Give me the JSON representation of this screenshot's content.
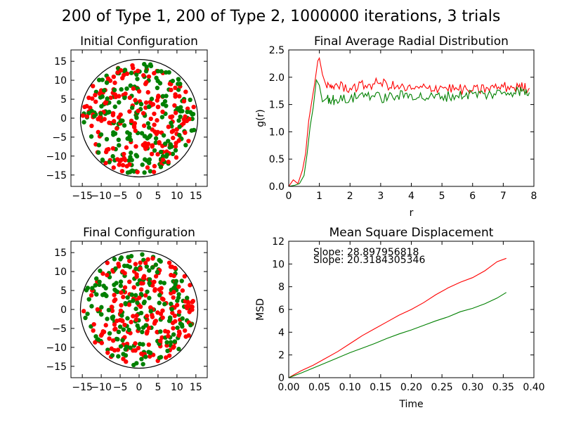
{
  "figure": {
    "suptitle": "200 of Type 1, 200 of Type 2, 1000000 iterations, 3 trials"
  },
  "colors": {
    "type1": "#ff0000",
    "type2": "#008000",
    "axes": "#000000",
    "background": "#ffffff"
  },
  "chart_data": [
    {
      "type": "scatter",
      "title": "Initial Configuration",
      "xlabel": "",
      "ylabel": "",
      "xlim": [
        -18,
        18
      ],
      "ylim": [
        -18,
        18
      ],
      "xticks": [
        -15,
        -10,
        -5,
        0,
        5,
        10,
        15
      ],
      "xtick_labels": [
        "−15",
        "−10",
        "−5",
        "0",
        "5",
        "10",
        "15"
      ],
      "yticks": [
        -15,
        -10,
        -5,
        0,
        5,
        10,
        15
      ],
      "ytick_labels": [
        "−15",
        "−10",
        "−5",
        "0",
        "5",
        "10",
        "15"
      ],
      "boundary_circle_radius": 15.5,
      "grid": false,
      "series": [
        {
          "color": "#ff0000",
          "count": 200
        },
        {
          "color": "#008000",
          "count": 200
        }
      ]
    },
    {
      "type": "line",
      "title": "Final Average Radial Distribution",
      "xlabel": "r",
      "ylabel": "g(r)",
      "xlim": [
        0,
        8
      ],
      "ylim": [
        0,
        2.5
      ],
      "xticks": [
        0,
        1,
        2,
        3,
        4,
        5,
        6,
        7,
        8
      ],
      "xtick_labels": [
        "0",
        "1",
        "2",
        "3",
        "4",
        "5",
        "6",
        "7",
        "8"
      ],
      "yticks": [
        0,
        0.5,
        1,
        1.5,
        2,
        2.5
      ],
      "ytick_labels": [
        "0.0",
        "0.5",
        "1.0",
        "1.5",
        "2.0",
        "2.5"
      ],
      "grid": false,
      "series": [
        {
          "color": "#ff0000",
          "x": [
            0,
            0.15,
            0.3,
            0.45,
            0.55,
            0.65,
            0.75,
            0.85,
            0.95,
            1.0,
            1.1,
            1.25,
            1.5,
            2,
            2.5,
            3,
            3.5,
            4,
            4.5,
            5,
            5.5,
            6,
            6.5,
            7,
            7.5,
            7.85
          ],
          "y": [
            0,
            0.12,
            0.05,
            0.3,
            0.6,
            1.2,
            1.55,
            1.9,
            2.3,
            2.35,
            2.05,
            1.8,
            1.85,
            1.8,
            1.85,
            1.9,
            1.82,
            1.78,
            1.8,
            1.82,
            1.78,
            1.75,
            1.8,
            1.82,
            1.82,
            1.8
          ]
        },
        {
          "color": "#008000",
          "x": [
            0,
            0.2,
            0.35,
            0.5,
            0.6,
            0.7,
            0.8,
            0.9,
            1.0,
            1.1,
            1.25,
            1.5,
            2,
            2.5,
            3,
            3.5,
            4,
            4.5,
            5,
            5.5,
            6,
            6.5,
            7,
            7.5,
            7.85
          ],
          "y": [
            0,
            0.02,
            0.05,
            0.2,
            0.6,
            1.1,
            1.45,
            1.95,
            1.85,
            1.55,
            1.62,
            1.58,
            1.6,
            1.7,
            1.62,
            1.65,
            1.68,
            1.62,
            1.65,
            1.66,
            1.7,
            1.68,
            1.72,
            1.75,
            1.72
          ]
        }
      ]
    },
    {
      "type": "scatter",
      "title": "Final Configuration",
      "xlabel": "",
      "ylabel": "",
      "xlim": [
        -18,
        18
      ],
      "ylim": [
        -18,
        18
      ],
      "xticks": [
        -15,
        -10,
        -5,
        0,
        5,
        10,
        15
      ],
      "xtick_labels": [
        "−15",
        "−10",
        "−5",
        "0",
        "5",
        "10",
        "15"
      ],
      "yticks": [
        -15,
        -10,
        -5,
        0,
        5,
        10,
        15
      ],
      "ytick_labels": [
        "−15",
        "−10",
        "−5",
        "0",
        "5",
        "10",
        "15"
      ],
      "boundary_circle_radius": 15.5,
      "grid": false,
      "series": [
        {
          "color": "#ff0000",
          "count": 200
        },
        {
          "color": "#008000",
          "count": 200
        }
      ]
    },
    {
      "type": "line",
      "title": "Mean Square Displacement",
      "xlabel": "Time",
      "ylabel": "MSD",
      "xlim": [
        0,
        0.4
      ],
      "ylim": [
        0,
        12
      ],
      "xticks": [
        0,
        0.05,
        0.1,
        0.15,
        0.2,
        0.25,
        0.3,
        0.35,
        0.4
      ],
      "xtick_labels": [
        "0.00",
        "0.05",
        "0.10",
        "0.15",
        "0.20",
        "0.25",
        "0.30",
        "0.35",
        "0.40"
      ],
      "yticks": [
        0,
        2,
        4,
        6,
        8,
        10,
        12
      ],
      "ytick_labels": [
        "0",
        "2",
        "4",
        "6",
        "8",
        "10",
        "12"
      ],
      "grid": false,
      "annotations": [
        "Slope: 28.897956818",
        "Slope: 20.3184305346"
      ],
      "series": [
        {
          "color": "#ff0000",
          "x": [
            0,
            0.02,
            0.04,
            0.06,
            0.08,
            0.1,
            0.12,
            0.14,
            0.16,
            0.18,
            0.2,
            0.22,
            0.24,
            0.26,
            0.28,
            0.3,
            0.32,
            0.34,
            0.355
          ],
          "y": [
            0,
            0.6,
            1.1,
            1.7,
            2.3,
            3.0,
            3.7,
            4.3,
            4.9,
            5.5,
            6.0,
            6.6,
            7.3,
            7.9,
            8.4,
            8.8,
            9.4,
            10.2,
            10.5
          ]
        },
        {
          "color": "#008000",
          "x": [
            0,
            0.02,
            0.04,
            0.06,
            0.08,
            0.1,
            0.12,
            0.14,
            0.16,
            0.18,
            0.2,
            0.22,
            0.24,
            0.26,
            0.28,
            0.3,
            0.32,
            0.34,
            0.355
          ],
          "y": [
            0,
            0.4,
            0.85,
            1.3,
            1.75,
            2.2,
            2.6,
            3.0,
            3.45,
            3.85,
            4.2,
            4.6,
            5.0,
            5.35,
            5.8,
            6.1,
            6.5,
            7.0,
            7.5
          ]
        }
      ]
    }
  ]
}
